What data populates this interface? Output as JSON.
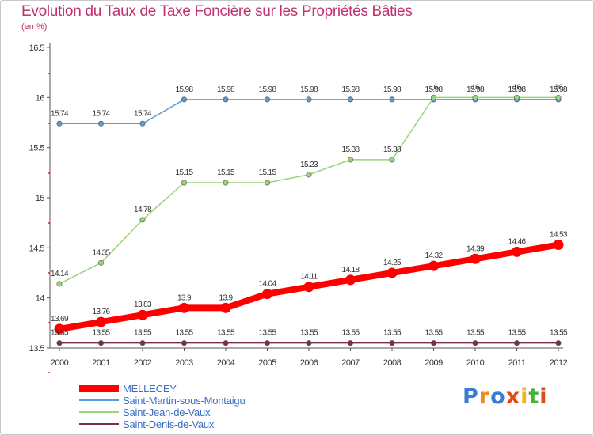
{
  "title": "Evolution du Taux de Taxe Foncière sur les Propriétés Bâties",
  "unit": "(en %)",
  "brand": {
    "text": "Proxiti",
    "letter_colors": [
      "#3a7bd5",
      "#f08a1c",
      "#3a7bd5",
      "#e04a1f",
      "#f0b41c",
      "#4caf3c",
      "#e04a1f"
    ]
  },
  "chart_data": {
    "type": "line",
    "title": "Evolution du Taux de Taxe Foncière sur les Propriétés Bâties",
    "ylabel": "(en %)",
    "xlabel": "",
    "x": [
      "2000",
      "2001",
      "2002",
      "2003",
      "2004",
      "2005",
      "2006",
      "2007",
      "2008",
      "2009",
      "2010",
      "2011",
      "2012"
    ],
    "ylim": [
      13.5,
      16.5
    ],
    "yticks": [
      "13.5",
      "14",
      "14.5",
      "15",
      "15.5",
      "16",
      "16.5"
    ],
    "grid": false,
    "legend_position": "bottom-left",
    "series": [
      {
        "name": "MELLECEY",
        "color": "#ff0000",
        "values": [
          13.69,
          13.76,
          13.83,
          13.9,
          13.9,
          14.04,
          14.11,
          14.18,
          14.25,
          14.32,
          14.39,
          14.46,
          14.53
        ],
        "labels": [
          "13.69",
          "13.76",
          "13.83",
          "13.9",
          "13.9",
          "14.04",
          "14.11",
          "14.18",
          "14.25",
          "14.32",
          "14.39",
          "14.46",
          "14.53"
        ]
      },
      {
        "name": "Saint-Martin-sous-Montaigu",
        "color": "#5b9bd5",
        "values": [
          15.74,
          15.74,
          15.74,
          15.98,
          15.98,
          15.98,
          15.98,
          15.98,
          15.98,
          15.98,
          15.98,
          15.98,
          15.98
        ],
        "labels": [
          "15.74",
          "15.74",
          "15.74",
          "15.98",
          "15.98",
          "15.98",
          "15.98",
          "15.98",
          "15.98",
          "15.98",
          "15.98",
          "15.98",
          "15.98"
        ]
      },
      {
        "name": "Saint-Jean-de-Vaux",
        "color": "#99d37a",
        "values": [
          14.14,
          14.35,
          14.78,
          15.15,
          15.15,
          15.15,
          15.23,
          15.38,
          15.38,
          16,
          16,
          16,
          16
        ],
        "labels": [
          "14.14",
          "14.35",
          "14.78",
          "15.15",
          "15.15",
          "15.15",
          "15.23",
          "15.38",
          "15.38",
          "16",
          "16",
          "16",
          "16"
        ]
      },
      {
        "name": "Saint-Denis-de-Vaux",
        "color": "#7a3040",
        "values": [
          13.55,
          13.55,
          13.55,
          13.55,
          13.55,
          13.55,
          13.55,
          13.55,
          13.55,
          13.55,
          13.55,
          13.55,
          13.55
        ],
        "labels": [
          "13.55",
          "13.55",
          "13.55",
          "13.55",
          "13.55",
          "13.55",
          "13.55",
          "13.55",
          "13.55",
          "13.55",
          "13.55",
          "13.55",
          "13.55"
        ]
      }
    ]
  }
}
